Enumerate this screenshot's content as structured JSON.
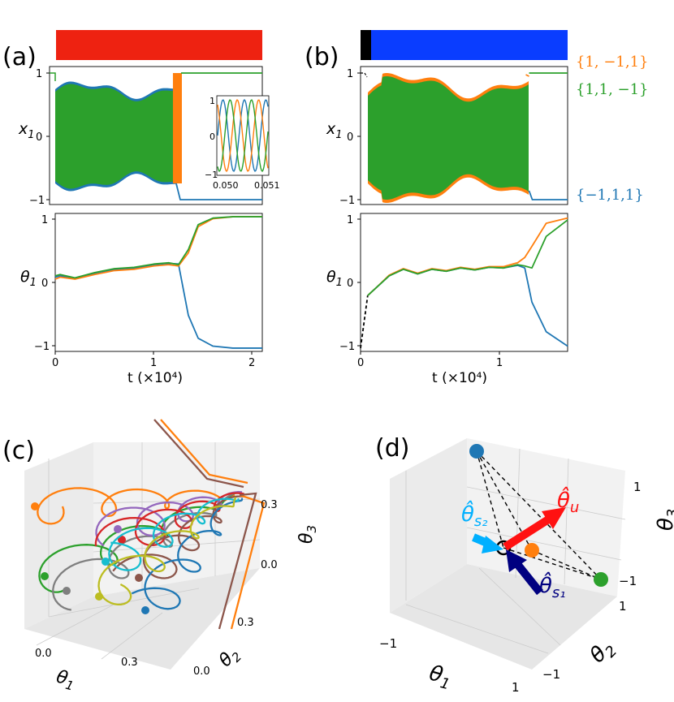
{
  "colors": {
    "blue": "#1f77b4",
    "orange": "#ff7f0e",
    "green": "#2ca02c",
    "red": "#d62728",
    "purple": "#9467bd",
    "brown": "#8c564b",
    "gray": "#7f7f7f",
    "olive": "#bcbd22",
    "cyan": "#17becf",
    "bar_red": "#ee2211",
    "bar_blue": "#0a3dff",
    "bar_black": "#000000"
  },
  "chart_data": [
    {
      "panel": "(a)",
      "type": "line",
      "top_bar": "red",
      "x_tick_labels": [
        "0",
        "1",
        "2"
      ],
      "xlabel": "t (×10⁴)",
      "xlim": [
        0,
        2.1
      ],
      "upper": {
        "ylabel": "x₁",
        "ylim": [
          -1.05,
          1.05
        ],
        "y_tick_labels": [
          "1",
          "0",
          "−1"
        ],
        "description": "fast oscillation between ±0.6–0.8 until t≈1.25, then settles",
        "final_values": {
          "blue": -1,
          "orange": 1,
          "green": 1
        },
        "switch_time": 1.25
      },
      "inset": {
        "x_tick_labels": [
          "0.050",
          "0.051"
        ],
        "y_tick_labels": [
          "1",
          "0",
          "−1"
        ],
        "xlim": [
          0.0498,
          0.0512
        ],
        "ylim": [
          -1,
          1
        ]
      },
      "lower": {
        "ylabel": "θ₁",
        "ylim": [
          -1.05,
          1.05
        ],
        "y_tick_labels": [
          "1",
          "0",
          "−1"
        ],
        "series": [
          {
            "name": "blue",
            "x": [
              0,
              0.05,
              0.2,
              0.4,
              0.6,
              0.8,
              1.0,
              1.15,
              1.25,
              1.35,
              1.45,
              1.6,
              1.8,
              2.1
            ],
            "y": [
              0.08,
              0.1,
              0.06,
              0.14,
              0.2,
              0.22,
              0.27,
              0.29,
              0.28,
              -0.5,
              -0.85,
              -0.97,
              -1.0,
              -1.0
            ]
          },
          {
            "name": "orange",
            "x": [
              0,
              0.05,
              0.2,
              0.4,
              0.6,
              0.8,
              1.0,
              1.15,
              1.25,
              1.35,
              1.45,
              1.6,
              1.8,
              2.1
            ],
            "y": [
              0.05,
              0.08,
              0.05,
              0.12,
              0.18,
              0.2,
              0.25,
              0.27,
              0.25,
              0.45,
              0.85,
              0.97,
              1.0,
              1.0
            ]
          },
          {
            "name": "green",
            "x": [
              0,
              0.05,
              0.2,
              0.4,
              0.6,
              0.8,
              1.0,
              1.15,
              1.25,
              1.35,
              1.45,
              1.6,
              1.8,
              2.1
            ],
            "y": [
              0.1,
              0.12,
              0.07,
              0.15,
              0.21,
              0.23,
              0.28,
              0.3,
              0.27,
              0.5,
              0.88,
              0.98,
              1.0,
              1.0
            ]
          }
        ]
      }
    },
    {
      "panel": "(b)",
      "type": "line",
      "top_bar": "black→blue",
      "x_tick_labels": [
        "0",
        "1"
      ],
      "xlabel": "t (×10⁴)",
      "xlim": [
        0,
        1.45
      ],
      "upper": {
        "ylabel": "x₁",
        "ylim": [
          -1.05,
          1.05
        ],
        "y_tick_labels": [
          "1",
          "0",
          "−1"
        ],
        "final_values": {
          "blue": -1,
          "orange": 1,
          "green": 1
        },
        "switch_time": 1.18
      },
      "lower": {
        "ylabel": "θ₁",
        "ylim": [
          -1.05,
          1.05
        ],
        "y_tick_labels": [
          "1",
          "0",
          "−1"
        ],
        "series": [
          {
            "name": "dashed-initial",
            "x": [
              0,
              0.05
            ],
            "y": [
              -1,
              -0.2
            ]
          },
          {
            "name": "blue",
            "x": [
              0.05,
              0.1,
              0.2,
              0.3,
              0.4,
              0.5,
              0.6,
              0.7,
              0.8,
              0.9,
              1.0,
              1.1,
              1.15,
              1.2,
              1.3,
              1.45
            ],
            "y": [
              -0.2,
              -0.1,
              0.1,
              0.2,
              0.13,
              0.2,
              0.17,
              0.22,
              0.19,
              0.23,
              0.22,
              0.26,
              0.22,
              -0.3,
              -0.75,
              -0.97
            ]
          },
          {
            "name": "orange",
            "x": [
              0.05,
              0.1,
              0.2,
              0.3,
              0.4,
              0.5,
              0.6,
              0.7,
              0.8,
              0.9,
              1.0,
              1.1,
              1.15,
              1.2,
              1.3,
              1.45
            ],
            "y": [
              -0.2,
              -0.1,
              0.11,
              0.21,
              0.14,
              0.21,
              0.18,
              0.23,
              0.2,
              0.24,
              0.24,
              0.3,
              0.38,
              0.55,
              0.9,
              0.98
            ]
          },
          {
            "name": "green",
            "x": [
              0.05,
              0.1,
              0.2,
              0.3,
              0.4,
              0.5,
              0.6,
              0.7,
              0.8,
              0.9,
              1.0,
              1.1,
              1.15,
              1.2,
              1.3,
              1.45
            ],
            "y": [
              -0.2,
              -0.1,
              0.1,
              0.2,
              0.13,
              0.2,
              0.17,
              0.22,
              0.19,
              0.23,
              0.22,
              0.27,
              0.25,
              0.22,
              0.7,
              0.95
            ]
          }
        ]
      },
      "legend": [
        {
          "label": "{1, −1,1}",
          "color": "orange"
        },
        {
          "label": "{1,1, −1}",
          "color": "green"
        },
        {
          "label": "{−1,1,1}",
          "color": "blue"
        }
      ]
    },
    {
      "panel": "(c)",
      "type": "line3d",
      "axes": {
        "x": {
          "label": "θ₁",
          "ticks": [
            "0.0",
            "0.3"
          ]
        },
        "y": {
          "label": "θ₂",
          "ticks": [
            "0.0",
            "0.3"
          ]
        },
        "z": {
          "label": "θ₃",
          "ticks": [
            "0.0",
            "0.3"
          ]
        }
      },
      "trajectories": [
        "orange",
        "green",
        "gray",
        "purple",
        "red",
        "brown",
        "blue",
        "cyan",
        "olive"
      ]
    },
    {
      "panel": "(d)",
      "type": "scatter3d",
      "axes": {
        "x": {
          "label": "θ₁",
          "ticks": [
            "−1",
            "1"
          ]
        },
        "y": {
          "label": "θ₂",
          "ticks": [
            "1",
            "−1"
          ]
        },
        "z": {
          "label": "θ₃",
          "ticks": [
            "1",
            "−1"
          ]
        }
      },
      "points": [
        {
          "name": "{−1,1,1}",
          "color": "blue"
        },
        {
          "name": "{1,−1,1}",
          "color": "orange"
        },
        {
          "name": "{1,1,−1}",
          "color": "green"
        },
        {
          "name": "origin",
          "color": "black"
        }
      ],
      "vectors": [
        {
          "label": "θ̂u",
          "color": "red"
        },
        {
          "label": "θ̂s2",
          "color": "cyan"
        },
        {
          "label": "θ̂s1",
          "color": "navy"
        }
      ]
    }
  ],
  "panel_labels": {
    "a": "(a)",
    "b": "(b)",
    "c": "(c)",
    "d": "(d)"
  },
  "text": {
    "x1": "x",
    "x1_sub": "1",
    "theta1": "θ",
    "theta1_sub": "1",
    "theta2": "θ",
    "theta2_sub": "2",
    "theta3": "θ",
    "theta3_sub": "3",
    "t_label_a": "t (×10⁴)",
    "t_label_b": "t (×10⁴)",
    "hat_u": "θ̂",
    "hat_u_sub": "u",
    "hat_s1": "θ̂",
    "hat_s1_sub": "s₁",
    "hat_s2": "θ̂",
    "hat_s2_sub": "s₂"
  }
}
